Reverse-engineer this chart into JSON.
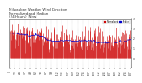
{
  "title": "Milwaukee Weather Wind Direction\nNormalized and Median\n(24 Hours) (New)",
  "background_color": "#ffffff",
  "plot_bg_color": "#ffffff",
  "grid_color": "#bbbbbb",
  "n_points": 288,
  "y_min": -1,
  "y_max": 4,
  "bar_color": "#cc0000",
  "median_color": "#0000cc",
  "legend_labels": [
    "Normalized",
    "Median"
  ],
  "legend_colors": [
    "#cc0000",
    "#0000cc"
  ],
  "title_fontsize": 3.0,
  "tick_fontsize": 2.2,
  "right_axis_ticks": [
    -1,
    0,
    1,
    2,
    3,
    4
  ],
  "right_axis_labels": [
    "",
    "0",
    "1",
    "2",
    "3",
    "4"
  ]
}
